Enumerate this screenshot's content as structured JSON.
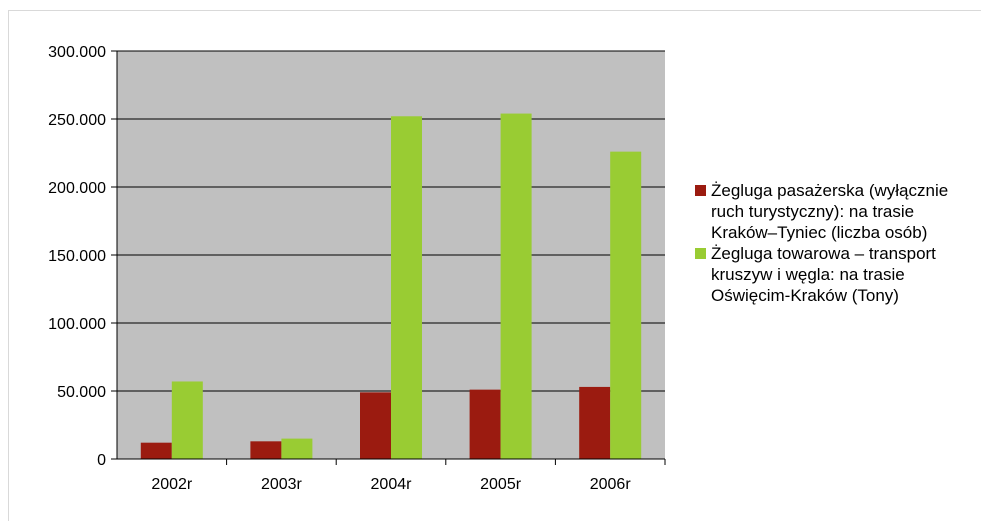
{
  "chart_data": {
    "type": "bar",
    "categories": [
      "2002r",
      "2003r",
      "2004r",
      "2005r",
      "2006r"
    ],
    "series": [
      {
        "name": "Żegluga pasażerska (wyłącznie ruch turystyczny): na trasie Kraków–Tyniec (liczba osób)",
        "values": [
          12000,
          13000,
          49000,
          51000,
          53000
        ],
        "color": "#9b1b10"
      },
      {
        "name": "Żegluga towarowa – transport kruszyw i węgla: na trasie Oświęcim-Kraków (Tony)",
        "values": [
          57000,
          15000,
          252000,
          254000,
          226000
        ],
        "color": "#99cc33"
      }
    ],
    "y_ticks": [
      "0",
      "50.000",
      "100.000",
      "150.000",
      "200.000",
      "250.000",
      "300.000"
    ],
    "ylim": [
      0,
      300000
    ],
    "plot_background": "#c0c0c0",
    "grid": true,
    "legend_position": "right"
  }
}
